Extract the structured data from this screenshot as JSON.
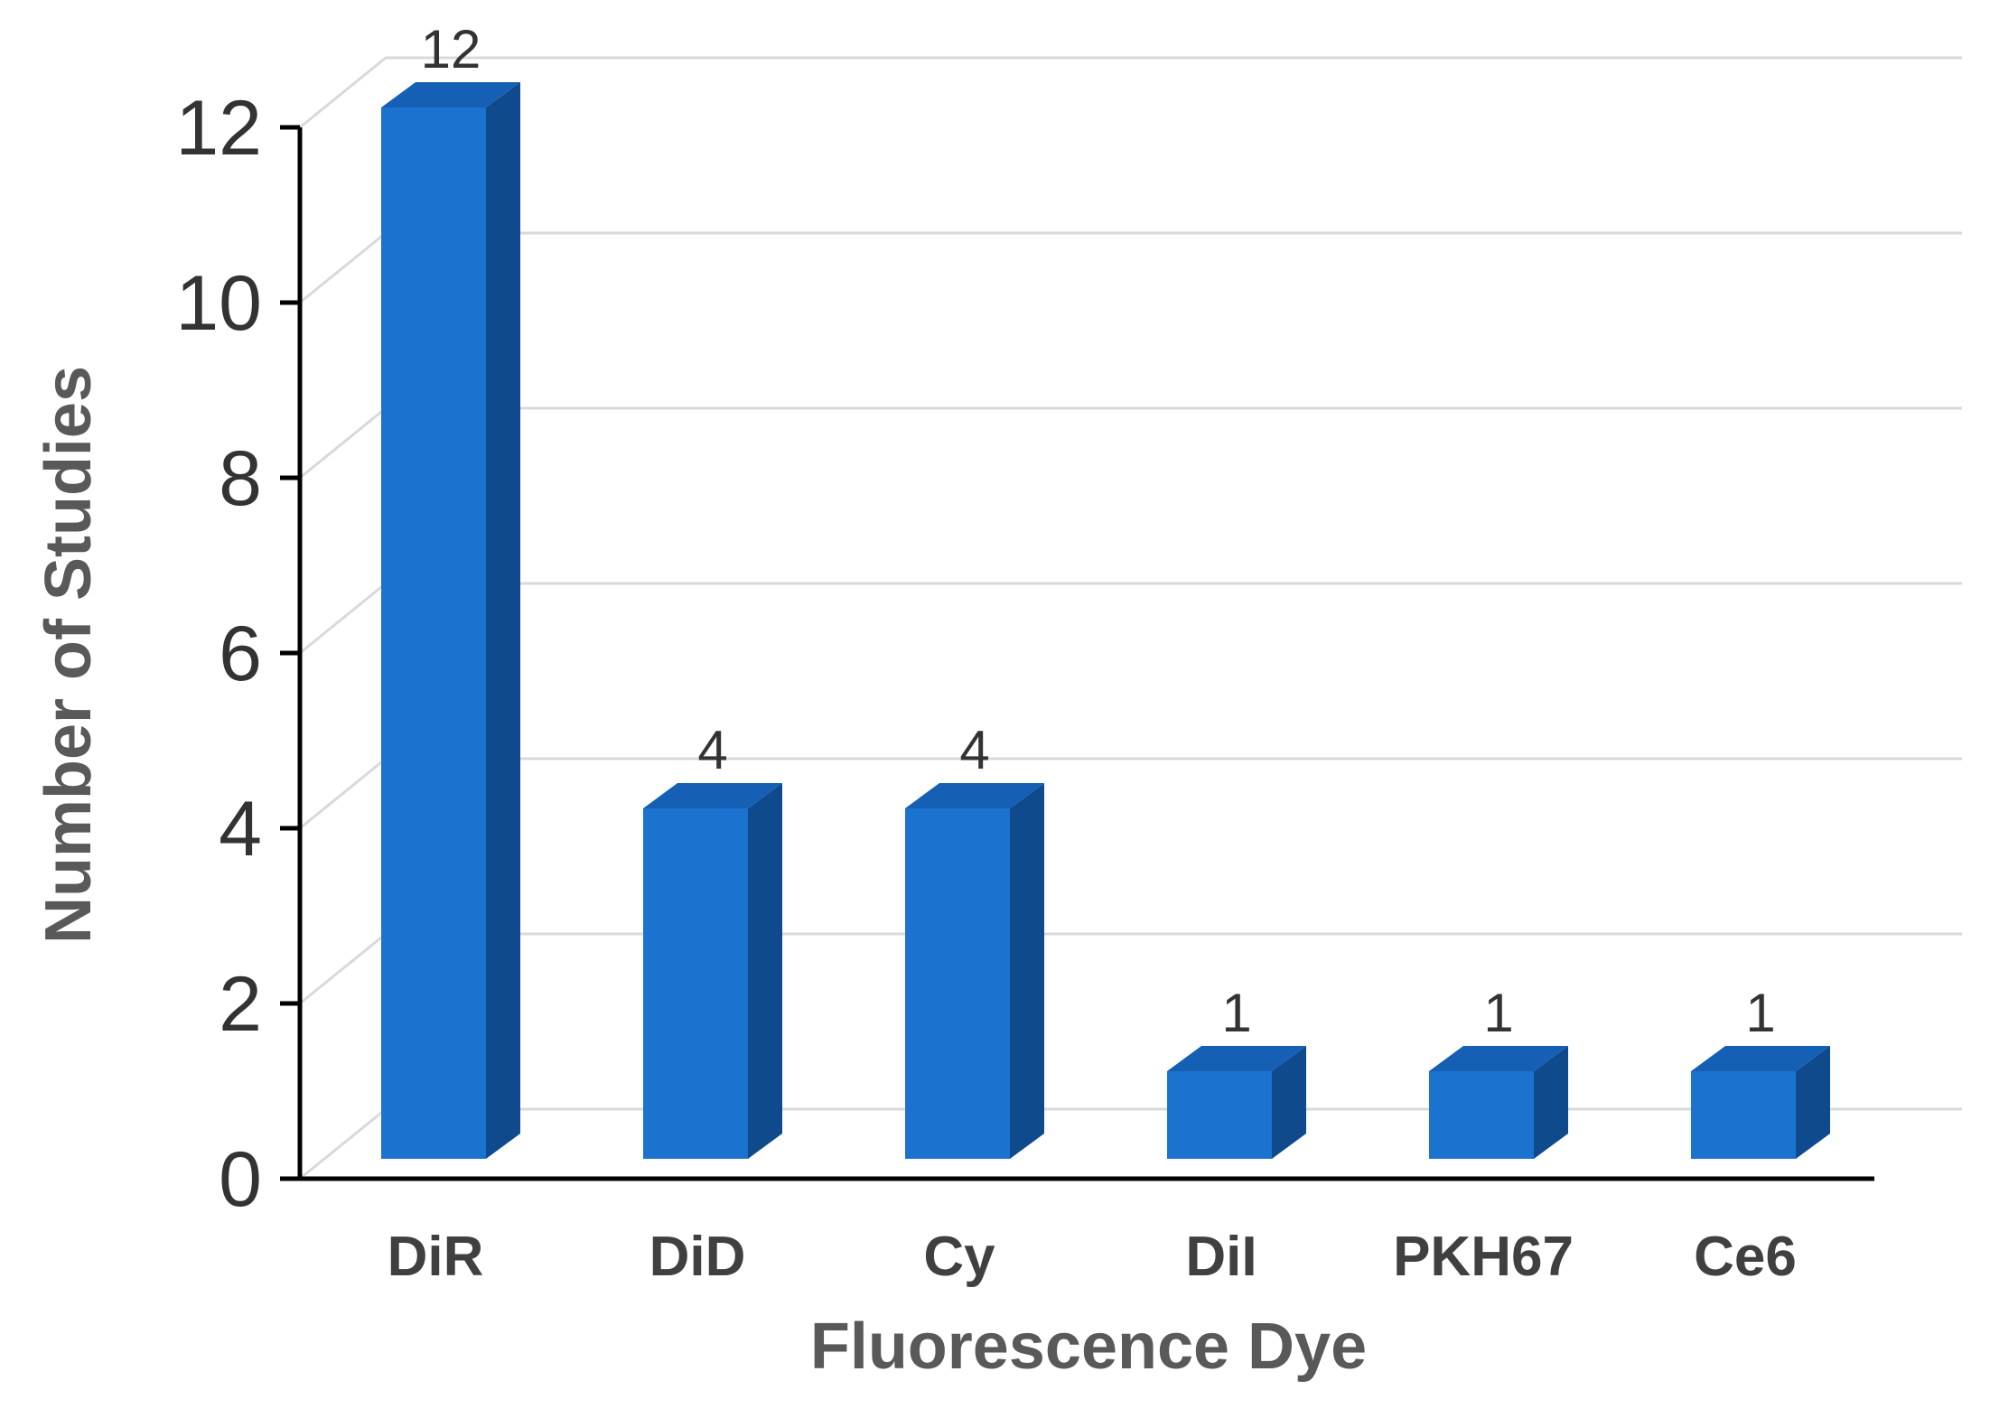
{
  "chart_data": {
    "type": "bar",
    "style": "3d-column",
    "categories": [
      "DiR",
      "DiD",
      "Cy",
      "DiI",
      "PKH67",
      "Ce6"
    ],
    "values": [
      12,
      4,
      4,
      1,
      1,
      1
    ],
    "data_labels": [
      "12",
      "4",
      "4",
      "1",
      "1",
      "1"
    ],
    "xlabel": "Fluorescence Dye",
    "ylabel": "Number of Studies",
    "ylim": [
      0,
      12
    ],
    "yticks": [
      "0",
      "2",
      "4",
      "6",
      "8",
      "10",
      "12"
    ],
    "ytick_values": [
      0,
      2,
      4,
      6,
      8,
      10,
      12
    ],
    "grid": true,
    "legend": "none",
    "colors": {
      "bar_front": "#1b72cf",
      "bar_side": "#0e4a8c",
      "bar_top": "#1560b4",
      "grid": "#d9d9d9",
      "axis": "#000000"
    }
  }
}
